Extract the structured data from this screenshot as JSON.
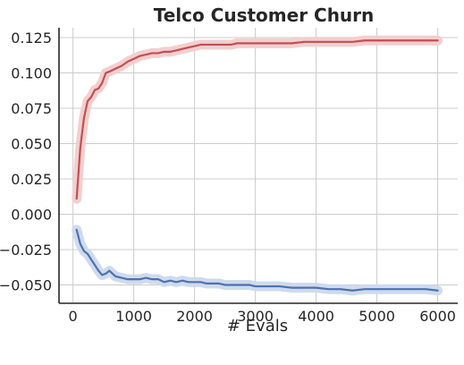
{
  "chart_data": {
    "type": "line",
    "title": "Telco Customer Churn",
    "xlabel": "# Evals",
    "ylabel": "",
    "xlim": [
      -230,
      6330
    ],
    "ylim": [
      -0.063,
      0.132
    ],
    "x_ticks": [
      0,
      1000,
      2000,
      3000,
      4000,
      5000,
      6000
    ],
    "x_tick_labels": [
      "0",
      "1000",
      "2000",
      "3000",
      "4000",
      "5000",
      "6000"
    ],
    "y_ticks": [
      -0.05,
      -0.025,
      0.0,
      0.025,
      0.05,
      0.075,
      0.1,
      0.125
    ],
    "y_tick_labels": [
      "−0.050",
      "−0.025",
      "0.000",
      "0.025",
      "0.050",
      "0.075",
      "0.100",
      "0.125"
    ],
    "grid": true,
    "series": [
      {
        "color": "#c44e52",
        "band_color": "#f3cfcf",
        "x": [
          60,
          120,
          180,
          240,
          300,
          360,
          420,
          480,
          540,
          600,
          700,
          800,
          900,
          1000,
          1100,
          1200,
          1300,
          1400,
          1500,
          1600,
          1700,
          1800,
          1900,
          2000,
          2100,
          2200,
          2300,
          2400,
          2500,
          2600,
          2700,
          2800,
          2900,
          3000,
          3200,
          3400,
          3600,
          3800,
          4000,
          4200,
          4400,
          4600,
          4800,
          5000,
          5200,
          5400,
          5600,
          5800,
          6000
        ],
        "values": [
          0.011,
          0.047,
          0.068,
          0.08,
          0.083,
          0.088,
          0.089,
          0.093,
          0.1,
          0.101,
          0.103,
          0.105,
          0.108,
          0.11,
          0.112,
          0.113,
          0.114,
          0.114,
          0.115,
          0.115,
          0.116,
          0.117,
          0.118,
          0.119,
          0.12,
          0.12,
          0.12,
          0.12,
          0.12,
          0.12,
          0.121,
          0.121,
          0.121,
          0.121,
          0.121,
          0.121,
          0.121,
          0.122,
          0.122,
          0.122,
          0.122,
          0.122,
          0.123,
          0.123,
          0.123,
          0.123,
          0.123,
          0.123,
          0.123
        ]
      },
      {
        "color": "#4c72b0",
        "band_color": "#cfdaee",
        "x": [
          60,
          120,
          180,
          240,
          300,
          360,
          420,
          480,
          540,
          600,
          700,
          800,
          900,
          1000,
          1100,
          1200,
          1300,
          1400,
          1500,
          1600,
          1700,
          1800,
          1900,
          2000,
          2100,
          2200,
          2300,
          2400,
          2500,
          2600,
          2700,
          2800,
          2900,
          3000,
          3200,
          3400,
          3600,
          3800,
          4000,
          4200,
          4400,
          4600,
          4800,
          5000,
          5200,
          5400,
          5600,
          5800,
          6000
        ],
        "values": [
          -0.011,
          -0.021,
          -0.026,
          -0.028,
          -0.032,
          -0.036,
          -0.04,
          -0.043,
          -0.042,
          -0.04,
          -0.044,
          -0.045,
          -0.046,
          -0.046,
          -0.046,
          -0.045,
          -0.046,
          -0.046,
          -0.048,
          -0.047,
          -0.048,
          -0.047,
          -0.048,
          -0.048,
          -0.048,
          -0.049,
          -0.049,
          -0.049,
          -0.05,
          -0.05,
          -0.05,
          -0.05,
          -0.05,
          -0.051,
          -0.051,
          -0.051,
          -0.052,
          -0.052,
          -0.052,
          -0.053,
          -0.053,
          -0.054,
          -0.053,
          -0.053,
          -0.053,
          -0.053,
          -0.053,
          -0.053,
          -0.054
        ]
      }
    ]
  }
}
